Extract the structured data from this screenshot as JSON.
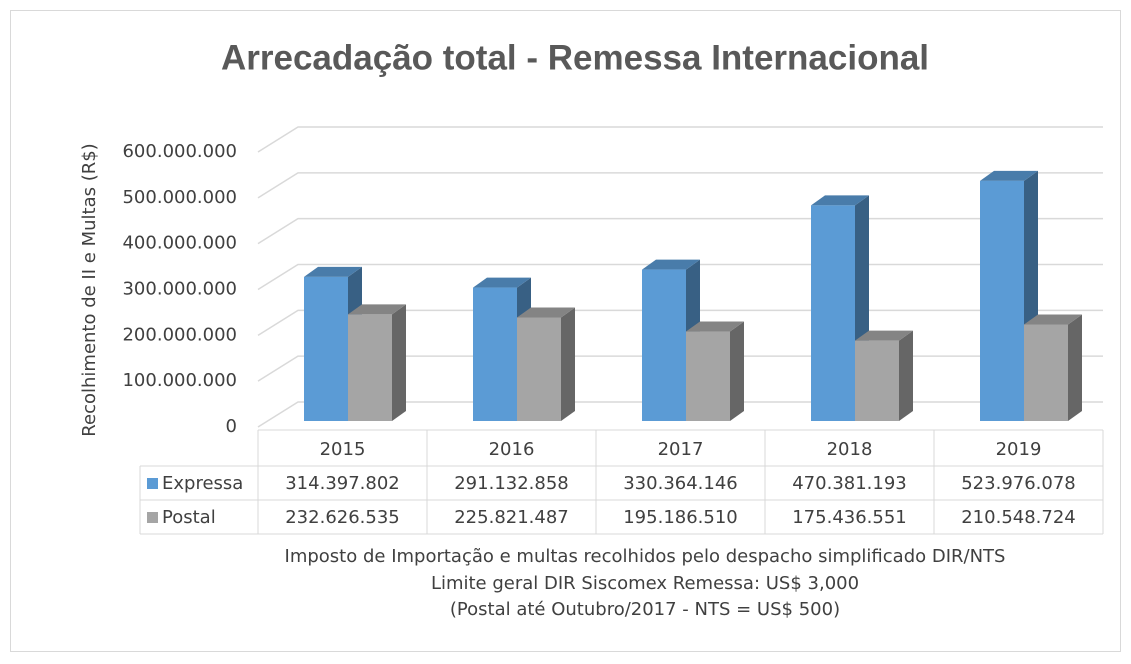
{
  "chart_data": {
    "type": "bar3d",
    "title": "Arrecadação total - Remessa Internacional",
    "y_label": "Recolhimento de II e Multas (R$)",
    "categories": [
      "2015",
      "2016",
      "2017",
      "2018",
      "2019"
    ],
    "series": [
      {
        "name": "Expressa",
        "color": "#5b9bd5",
        "values": [
          314397802,
          291132858,
          330364146,
          470381193,
          523976078
        ],
        "value_labels": [
          "314.397.802",
          "291.132.858",
          "330.364.146",
          "470.381.193",
          "523.976.078"
        ]
      },
      {
        "name": "Postal",
        "color": "#a5a5a5",
        "values": [
          232626535,
          225821487,
          195186510,
          175436551,
          210548724
        ],
        "value_labels": [
          "232.626.535",
          "225.821.487",
          "195.186.510",
          "175.436.551",
          "210.548.724"
        ]
      }
    ],
    "ylim": [
      0,
      600000000
    ],
    "yticks": [
      0,
      {
        "value": 100000000,
        "label": "100.000.000"
      },
      {
        "value": 200000000,
        "label": "200.000.000"
      },
      {
        "value": 300000000,
        "label": "300.000.000"
      },
      {
        "value": 400000000,
        "label": "400.000.000"
      },
      {
        "value": 500000000,
        "label": "500.000.000"
      },
      {
        "value": 600000000,
        "label": "600.000.000"
      }
    ],
    "grid": true,
    "notes": [
      "Imposto de Importação e multas recolhidos pelo despacho simplificado DIR/NTS",
      "Limite geral DIR Siscomex Remessa: US$ 3,000",
      "(Postal até Outubro/2017 - NTS = US$ 500)"
    ]
  }
}
